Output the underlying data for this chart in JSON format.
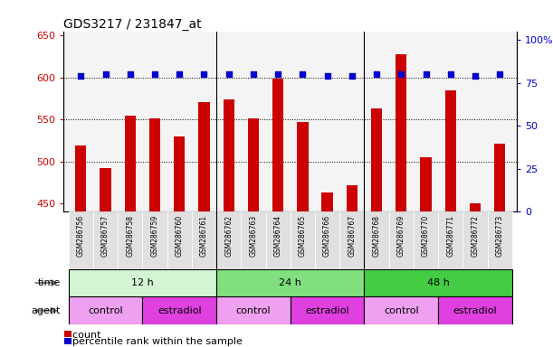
{
  "title": "GDS3217 / 231847_at",
  "samples": [
    "GSM286756",
    "GSM286757",
    "GSM286758",
    "GSM286759",
    "GSM286760",
    "GSM286761",
    "GSM286762",
    "GSM286763",
    "GSM286764",
    "GSM286765",
    "GSM286766",
    "GSM286767",
    "GSM286768",
    "GSM286769",
    "GSM286770",
    "GSM286771",
    "GSM286772",
    "GSM286773"
  ],
  "counts": [
    519,
    492,
    554,
    551,
    530,
    571,
    574,
    551,
    598,
    547,
    463,
    472,
    563,
    628,
    505,
    585,
    450,
    521
  ],
  "percentiles": [
    79,
    80,
    80,
    80,
    80,
    80,
    80,
    80,
    80,
    80,
    79,
    79,
    80,
    80,
    80,
    80,
    79,
    80
  ],
  "bar_color": "#cc0000",
  "dot_color": "#0000cc",
  "ylim_left": [
    440,
    655
  ],
  "ylim_right": [
    0,
    105
  ],
  "yticks_left": [
    450,
    500,
    550,
    600,
    650
  ],
  "yticks_right": [
    0,
    25,
    50,
    75,
    100
  ],
  "ytick_labels_right": [
    "0",
    "25",
    "50",
    "75",
    "100%"
  ],
  "time_groups": [
    {
      "label": "12 h",
      "start": 0,
      "end": 6,
      "color": "#d4f5d4"
    },
    {
      "label": "24 h",
      "start": 6,
      "end": 12,
      "color": "#80e080"
    },
    {
      "label": "48 h",
      "start": 12,
      "end": 18,
      "color": "#44cc44"
    }
  ],
  "agent_groups": [
    {
      "label": "control",
      "start": 0,
      "end": 3,
      "color": "#f0a0f0"
    },
    {
      "label": "estradiol",
      "start": 3,
      "end": 6,
      "color": "#e040e0"
    },
    {
      "label": "control",
      "start": 6,
      "end": 9,
      "color": "#f0a0f0"
    },
    {
      "label": "estradiol",
      "start": 9,
      "end": 12,
      "color": "#e040e0"
    },
    {
      "label": "control",
      "start": 12,
      "end": 15,
      "color": "#f0a0f0"
    },
    {
      "label": "estradiol",
      "start": 15,
      "end": 18,
      "color": "#e040e0"
    }
  ],
  "grid_dotted_values": [
    500,
    550,
    600
  ],
  "background_color": "#ffffff",
  "plot_bg_color": "#f4f4f4",
  "xticklabel_bg": "#e0e0e0"
}
